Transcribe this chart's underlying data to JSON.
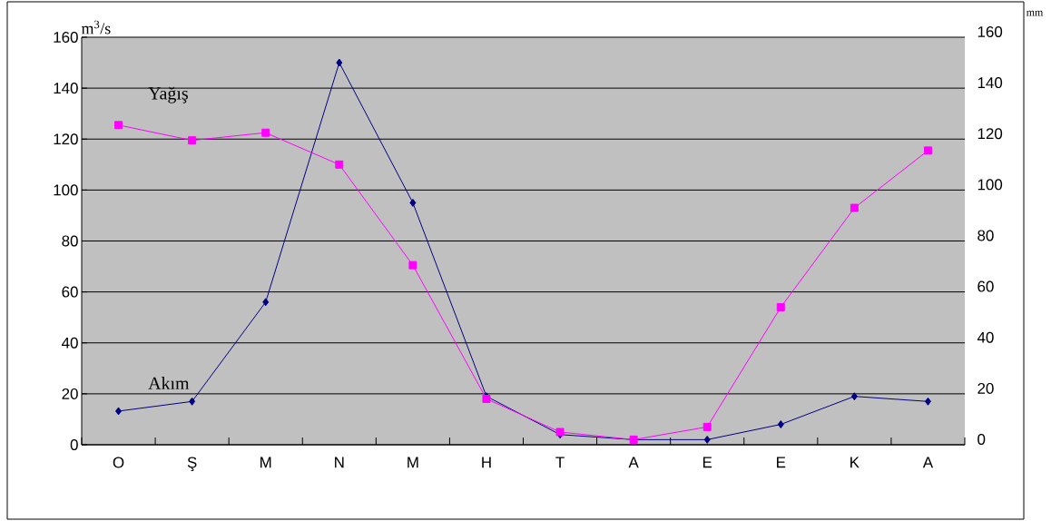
{
  "chart_data": {
    "type": "line",
    "categories": [
      "O",
      "Ş",
      "M",
      "N",
      "M",
      "H",
      "T",
      "A",
      "E",
      "E",
      "K",
      "A"
    ],
    "series": [
      {
        "name": "Akım",
        "color": "#000080",
        "marker": "diamond",
        "values": [
          13.2,
          17,
          56,
          150,
          95,
          19,
          4,
          2,
          2,
          8,
          19,
          17
        ]
      },
      {
        "name": "Yağış",
        "color": "#ff00ff",
        "marker": "square",
        "axis": "y2",
        "values": [
          125.5,
          119.5,
          122.5,
          110,
          70.5,
          18,
          5,
          2,
          7,
          54,
          93,
          115.5
        ]
      }
    ],
    "ylabel": "m$^{3}$/s",
    "y2label": "mm",
    "ylim": [
      0,
      160
    ],
    "yticks": [
      0,
      20,
      40,
      60,
      80,
      100,
      120,
      140,
      160
    ],
    "y2lim": [
      0,
      160
    ],
    "y2ticks": [
      0,
      20,
      40,
      60,
      80,
      100,
      120,
      140,
      160
    ],
    "grid": "y"
  }
}
